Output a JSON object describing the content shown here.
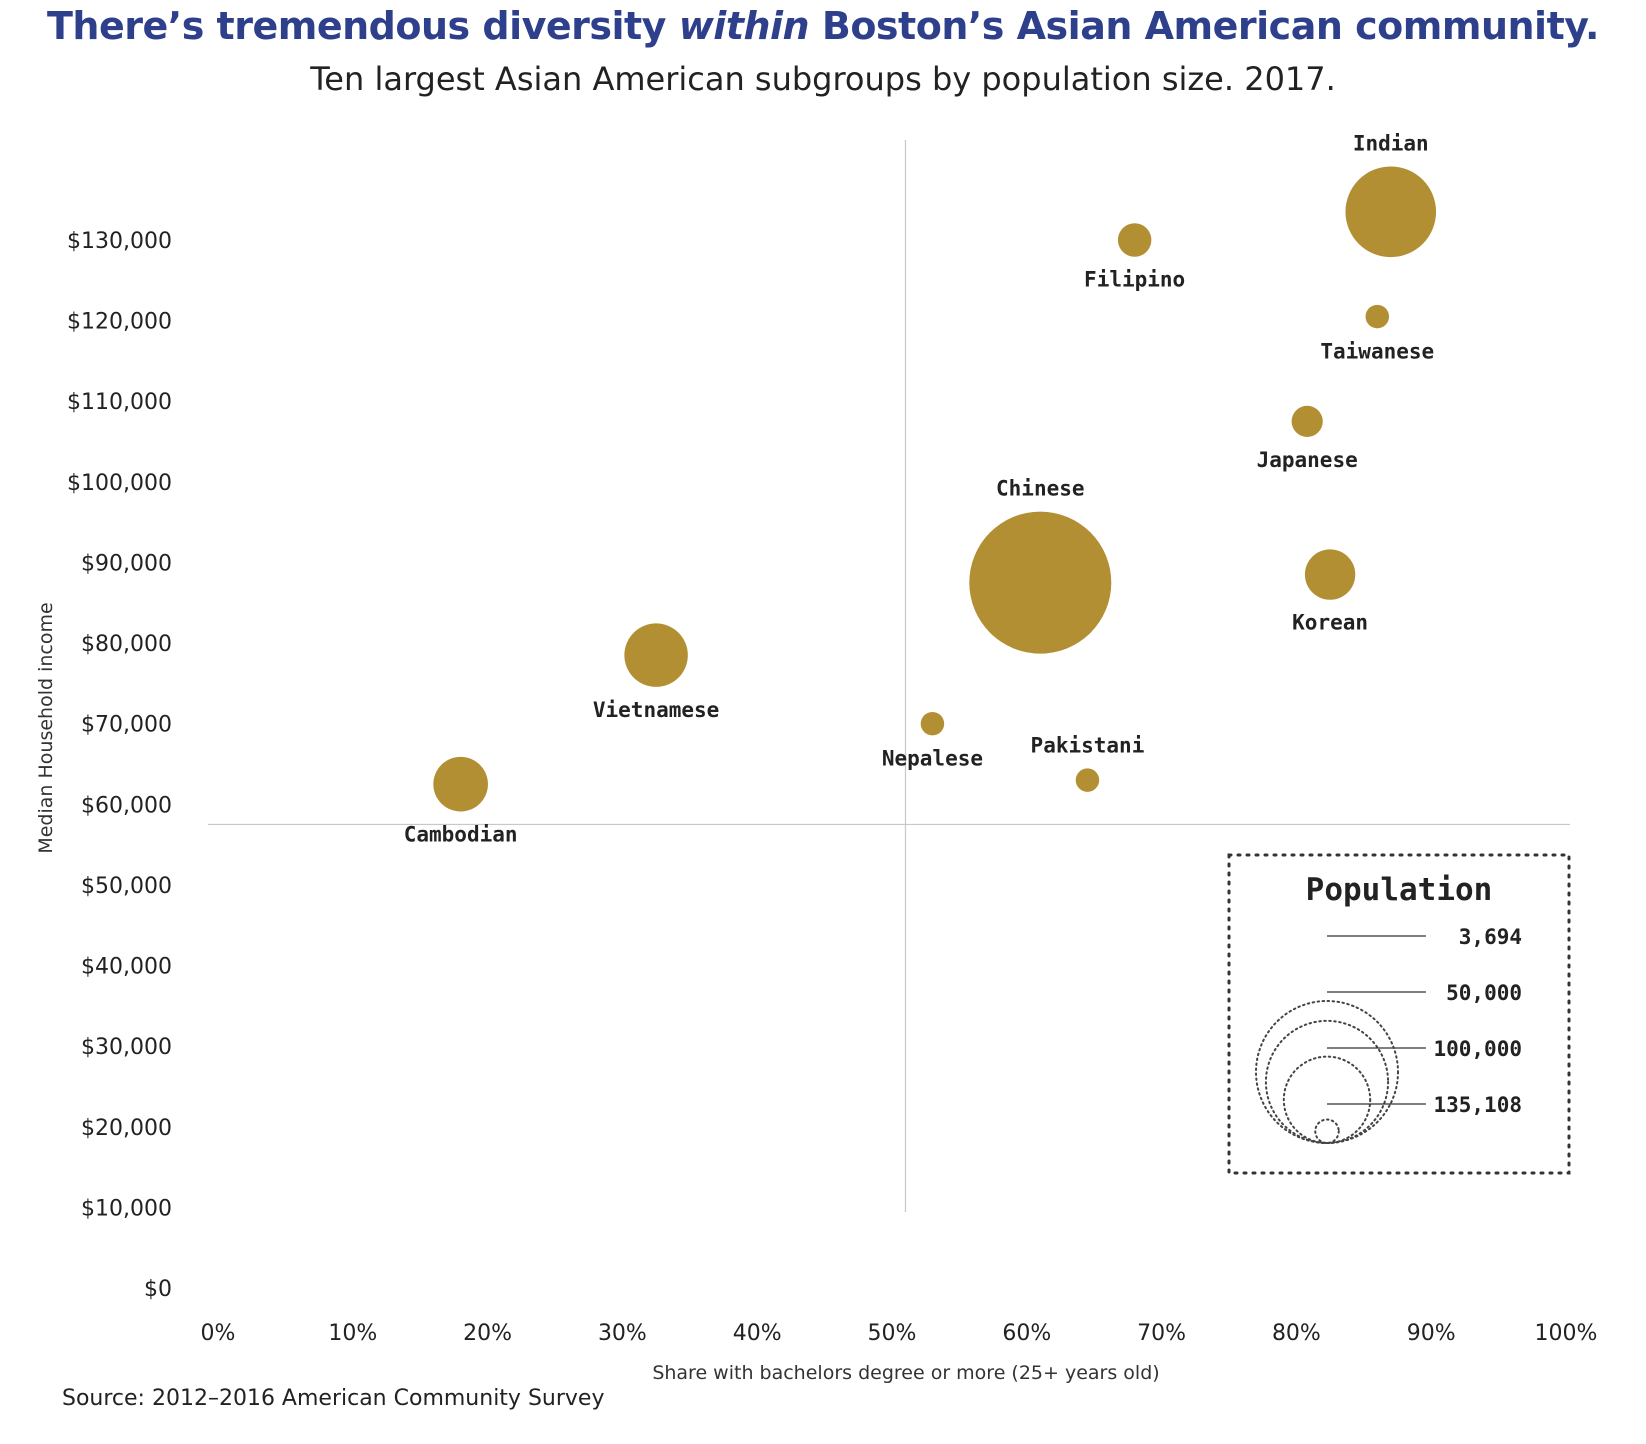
{
  "title": {
    "part1": "There’s tremendous diversity ",
    "italic": "within",
    "part2": " Boston’s Asian American community."
  },
  "subtitle": "Ten largest Asian American subgroups by population size. 2017.",
  "source": "Source: 2012–2016 American Community Survey",
  "colors": {
    "bubble": "#b38f34",
    "title": "#2e3f8c",
    "guide_line": "#c8c8c8",
    "text": "#222222"
  },
  "chart_data": {
    "type": "scatter",
    "xlabel": "Share with bachelors degree or more (25+ years old)",
    "ylabel": "Median Household income",
    "xlim": [
      0,
      100
    ],
    "ylim": [
      0,
      130000
    ],
    "x_ticks": [
      0,
      10,
      20,
      30,
      40,
      50,
      60,
      70,
      80,
      90,
      100
    ],
    "x_tick_labels": [
      "0%",
      "10%",
      "20%",
      "30%",
      "40%",
      "50%",
      "60%",
      "70%",
      "80%",
      "90%",
      "100%"
    ],
    "y_ticks": [
      0,
      10000,
      20000,
      30000,
      40000,
      50000,
      60000,
      70000,
      80000,
      90000,
      100000,
      110000,
      120000,
      130000
    ],
    "y_tick_labels": [
      "$0",
      "$10,000",
      "$20,000",
      "$30,000",
      "$40,000",
      "$50,000",
      "$60,000",
      "$70,000",
      "$80,000",
      "$90,000",
      "$100,000",
      "$110,000",
      "$120,000",
      "$130,000"
    ],
    "reference_lines": {
      "x": 51,
      "y": 57500
    },
    "grid": false,
    "legend_position": "bottom-right",
    "points": [
      {
        "label": "Indian",
        "x": 87,
        "y": 133500,
        "population": 55000,
        "label_side": "above"
      },
      {
        "label": "Filipino",
        "x": 68,
        "y": 130000,
        "population": 7500,
        "label_side": "below"
      },
      {
        "label": "Taiwanese",
        "x": 86,
        "y": 120500,
        "population": 3694,
        "label_side": "below"
      },
      {
        "label": "Japanese",
        "x": 80.8,
        "y": 107500,
        "population": 6500,
        "label_side": "below"
      },
      {
        "label": "Chinese",
        "x": 61,
        "y": 87500,
        "population": 135108,
        "label_side": "above"
      },
      {
        "label": "Korean",
        "x": 82.5,
        "y": 88500,
        "population": 17000,
        "label_side": "below"
      },
      {
        "label": "Vietnamese",
        "x": 32.5,
        "y": 78500,
        "population": 27000,
        "label_side": "below"
      },
      {
        "label": "Nepalese",
        "x": 53,
        "y": 70000,
        "population": 3694,
        "label_side": "below"
      },
      {
        "label": "Pakistani",
        "x": 64.5,
        "y": 63000,
        "population": 3694,
        "label_side": "above"
      },
      {
        "label": "Cambodian",
        "x": 18,
        "y": 62500,
        "population": 20000,
        "label_side": "below"
      }
    ],
    "size_legend": {
      "title": "Population",
      "values": [
        3694,
        50000,
        100000,
        135108
      ],
      "labels": [
        "3,694",
        "50,000",
        "100,000",
        "135,108"
      ]
    }
  }
}
